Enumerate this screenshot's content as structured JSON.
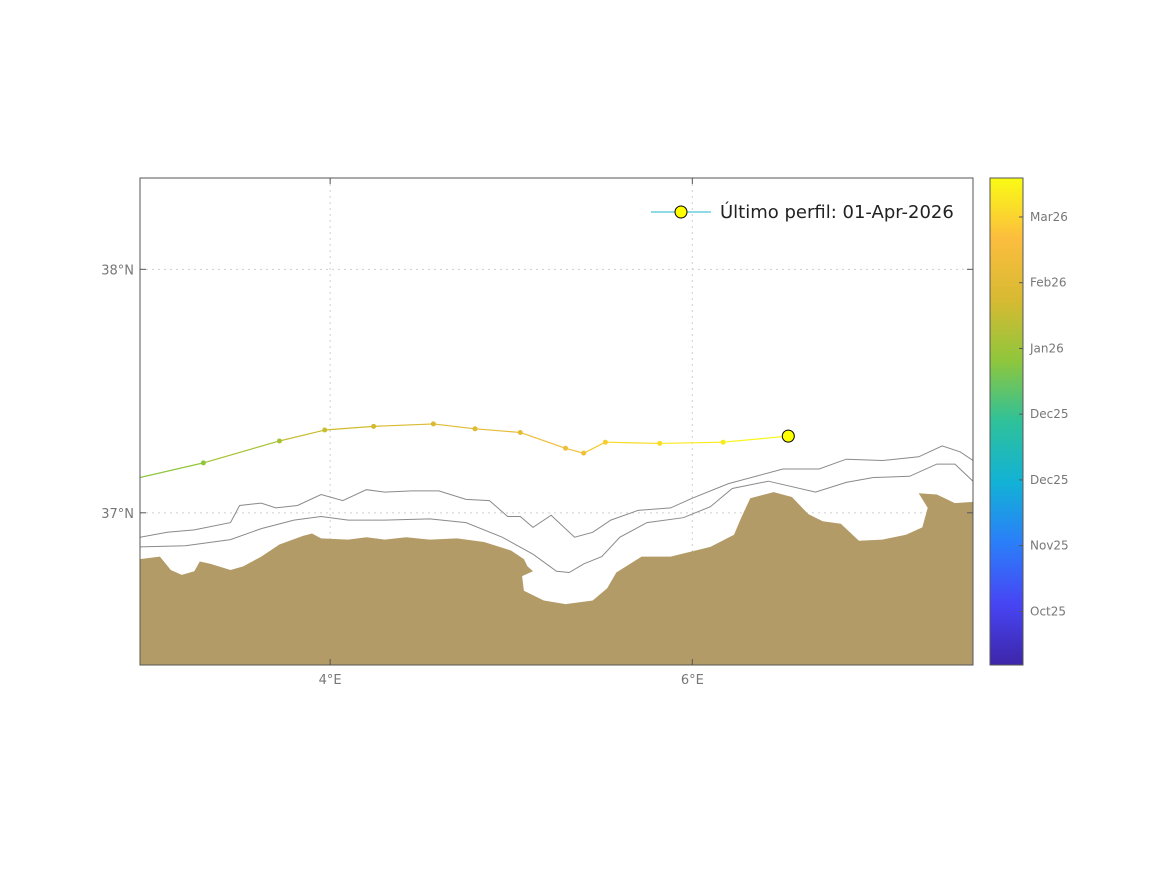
{
  "map": {
    "lon_range": [
      2.95,
      7.55
    ],
    "lat_range": [
      36.375,
      38.375
    ],
    "grid": "dotted",
    "land_color": "#b39b67",
    "isobath_color": "#8a8a8a",
    "x_ticks": [
      {
        "lon": 4,
        "label": "4°E"
      },
      {
        "lon": 6,
        "label": "6°E"
      }
    ],
    "y_ticks": [
      {
        "lat": 38,
        "label": "38°N"
      },
      {
        "lat": 37,
        "label": "37°N"
      }
    ]
  },
  "legend": {
    "label": "Último perfil: 01-Apr-2026",
    "position": "top-right",
    "marker_color": "#ffff00",
    "line_color": "#1fb6c9"
  },
  "colorbar": {
    "colors": [
      "#3d26a8",
      "#4745f4",
      "#2b7ef9",
      "#12b2d6",
      "#2ec19a",
      "#8fc63c",
      "#d7ba32",
      "#fcbd3e",
      "#f9fb15"
    ],
    "labels": [
      "Mar26",
      "Feb26",
      "Jan26",
      "Dec25",
      "Dec25",
      "Nov25",
      "Oct25"
    ],
    "label_fractions": [
      0.92,
      0.785,
      0.65,
      0.515,
      0.38,
      0.245,
      0.11
    ]
  },
  "chart_data": {
    "type": "line",
    "title": "",
    "xlabel": "",
    "ylabel": "",
    "xlim": [
      2.95,
      7.55
    ],
    "ylim": [
      36.375,
      38.375
    ],
    "series": [
      {
        "lon": [
          2.95,
          3.3,
          3.72,
          3.97,
          4.24,
          4.57,
          4.8,
          5.05,
          5.3,
          5.4,
          5.52,
          5.82,
          6.17,
          6.53
        ],
        "lat": [
          37.145,
          37.205,
          37.295,
          37.34,
          37.355,
          37.365,
          37.345,
          37.33,
          37.265,
          37.245,
          37.29,
          37.285,
          37.29,
          37.315
        ],
        "colors": [
          "#7dc450",
          "#8fc63c",
          "#a6c232",
          "#c7bd30",
          "#d0bb2f",
          "#d9ba31",
          "#dfba33",
          "#e5bb35",
          "#eebd39",
          "#f2bf3a",
          "#f6cc2e",
          "#f8dc22",
          "#f9ea1a",
          "#fbf514"
        ]
      }
    ]
  },
  "coast": {
    "land_outline": [
      [
        2.95,
        36.81
      ],
      [
        3.06,
        36.82
      ],
      [
        3.12,
        36.765
      ],
      [
        3.18,
        36.745
      ],
      [
        3.25,
        36.76
      ],
      [
        3.28,
        36.8
      ],
      [
        3.34,
        36.79
      ],
      [
        3.45,
        36.765
      ],
      [
        3.52,
        36.78
      ],
      [
        3.62,
        36.82
      ],
      [
        3.72,
        36.87
      ],
      [
        3.85,
        36.905
      ],
      [
        3.9,
        36.915
      ],
      [
        3.95,
        36.895
      ],
      [
        4.1,
        36.89
      ],
      [
        4.2,
        36.9
      ],
      [
        4.3,
        36.89
      ],
      [
        4.42,
        36.9
      ],
      [
        4.55,
        36.89
      ],
      [
        4.7,
        36.895
      ],
      [
        4.85,
        36.88
      ],
      [
        5.0,
        36.845
      ],
      [
        5.07,
        36.81
      ],
      [
        5.09,
        36.78
      ],
      [
        5.12,
        36.76
      ],
      [
        5.06,
        36.74
      ],
      [
        5.07,
        36.68
      ],
      [
        5.18,
        36.64
      ],
      [
        5.3,
        36.625
      ],
      [
        5.45,
        36.64
      ],
      [
        5.53,
        36.69
      ],
      [
        5.58,
        36.755
      ],
      [
        5.72,
        36.82
      ],
      [
        5.88,
        36.82
      ],
      [
        6.1,
        36.86
      ],
      [
        6.23,
        36.91
      ],
      [
        6.27,
        36.98
      ],
      [
        6.32,
        37.06
      ],
      [
        6.45,
        37.085
      ],
      [
        6.55,
        37.065
      ],
      [
        6.64,
        36.995
      ],
      [
        6.72,
        36.965
      ],
      [
        6.82,
        36.955
      ],
      [
        6.87,
        36.92
      ],
      [
        6.92,
        36.885
      ],
      [
        7.05,
        36.89
      ],
      [
        7.18,
        36.91
      ],
      [
        7.27,
        36.94
      ],
      [
        7.3,
        37.02
      ],
      [
        7.25,
        37.08
      ],
      [
        7.35,
        37.075
      ],
      [
        7.45,
        37.04
      ],
      [
        7.55,
        37.045
      ],
      [
        7.55,
        36.375
      ],
      [
        2.95,
        36.375
      ]
    ],
    "isobath_a": [
      [
        2.95,
        36.9
      ],
      [
        3.1,
        36.92
      ],
      [
        3.25,
        36.93
      ],
      [
        3.45,
        36.96
      ],
      [
        3.5,
        37.03
      ],
      [
        3.62,
        37.04
      ],
      [
        3.7,
        37.02
      ],
      [
        3.82,
        37.03
      ],
      [
        3.95,
        37.075
      ],
      [
        4.07,
        37.05
      ],
      [
        4.2,
        37.095
      ],
      [
        4.3,
        37.085
      ],
      [
        4.45,
        37.09
      ],
      [
        4.6,
        37.09
      ],
      [
        4.75,
        37.055
      ],
      [
        4.88,
        37.05
      ],
      [
        4.98,
        36.985
      ],
      [
        5.05,
        36.985
      ],
      [
        5.12,
        36.94
      ],
      [
        5.22,
        36.99
      ],
      [
        5.35,
        36.9
      ],
      [
        5.45,
        36.92
      ],
      [
        5.55,
        36.97
      ],
      [
        5.7,
        37.01
      ],
      [
        5.88,
        37.02
      ],
      [
        6.0,
        37.06
      ],
      [
        6.2,
        37.12
      ],
      [
        6.5,
        37.18
      ],
      [
        6.7,
        37.18
      ],
      [
        6.85,
        37.22
      ],
      [
        7.05,
        37.215
      ],
      [
        7.25,
        37.23
      ],
      [
        7.38,
        37.275
      ],
      [
        7.48,
        37.25
      ],
      [
        7.55,
        37.215
      ]
    ],
    "isobath_b": [
      [
        2.95,
        36.86
      ],
      [
        3.2,
        36.865
      ],
      [
        3.45,
        36.89
      ],
      [
        3.62,
        36.935
      ],
      [
        3.8,
        36.97
      ],
      [
        3.95,
        36.985
      ],
      [
        4.1,
        36.97
      ],
      [
        4.3,
        36.97
      ],
      [
        4.55,
        36.975
      ],
      [
        4.75,
        36.96
      ],
      [
        4.95,
        36.9
      ],
      [
        5.12,
        36.83
      ],
      [
        5.25,
        36.76
      ],
      [
        5.32,
        36.755
      ],
      [
        5.4,
        36.79
      ],
      [
        5.5,
        36.82
      ],
      [
        5.6,
        36.9
      ],
      [
        5.75,
        36.96
      ],
      [
        5.95,
        36.98
      ],
      [
        6.1,
        37.025
      ],
      [
        6.22,
        37.1
      ],
      [
        6.42,
        37.13
      ],
      [
        6.68,
        37.085
      ],
      [
        6.85,
        37.125
      ],
      [
        7.0,
        37.145
      ],
      [
        7.2,
        37.15
      ],
      [
        7.35,
        37.2
      ],
      [
        7.45,
        37.2
      ],
      [
        7.55,
        37.13
      ]
    ]
  }
}
